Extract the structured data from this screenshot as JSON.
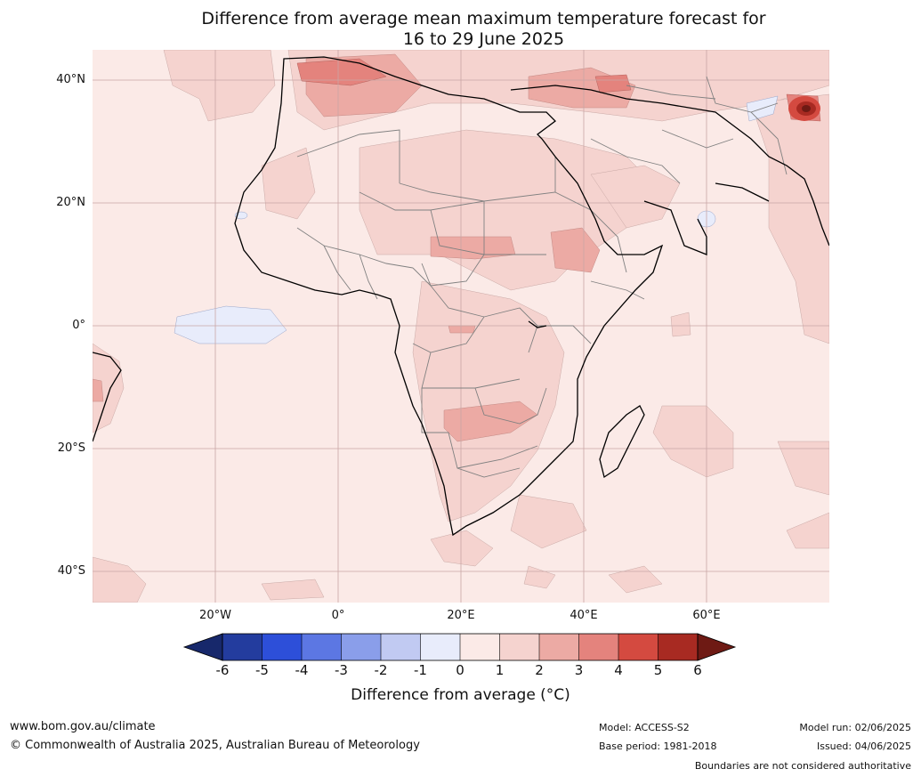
{
  "title_line1": "Difference from average mean maximum temperature forecast for",
  "title_line2": "16 to 29 June 2025",
  "lat_labels": [
    "40°N",
    "20°N",
    "0°",
    "20°S",
    "40°S"
  ],
  "lon_labels": [
    "20°W",
    "0°",
    "20°E",
    "40°E",
    "60°E"
  ],
  "colorbar": {
    "ticks": [
      "-6",
      "-5",
      "-4",
      "-3",
      "-2",
      "-1",
      "0",
      "1",
      "2",
      "3",
      "4",
      "5",
      "6"
    ],
    "label": "Difference from average (°C)",
    "colors": [
      "#233c9e",
      "#2d4fd9",
      "#5c77e3",
      "#8a9eea",
      "#c1caf2",
      "#e8ecfb",
      "#fbeae7",
      "#f5d3cf",
      "#ecaaa4",
      "#e4837d",
      "#d44a40",
      "#a82a22"
    ],
    "under_color": "#17286b",
    "over_color": "#6e1a14"
  },
  "footer": {
    "website": "www.bom.gov.au/climate",
    "copyright": "© Commonwealth of Australia 2025, Australian Bureau of Meteorology",
    "model": "Model: ACCESS-S2",
    "base_period": "Base period: 1981-2018",
    "model_run": "Model run: 02/06/2025",
    "issued": "Issued: 04/06/2025",
    "disclaimer": "Boundaries are not considered authoritative"
  }
}
